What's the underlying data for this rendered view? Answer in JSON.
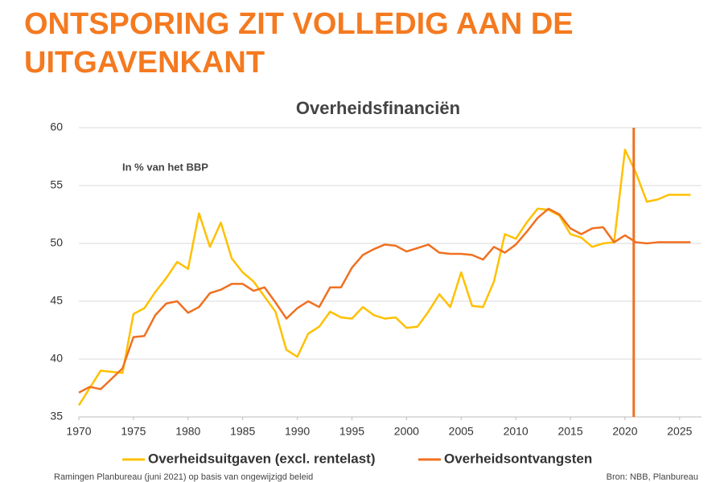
{
  "page_title": "ONTSPORING ZIT VOLLEDIG AAN DE UITGAVENKANT",
  "chart_data": {
    "type": "line",
    "title": "Overheidsfinanciën",
    "annotation": "In % van het BBP",
    "x": [
      1970,
      1971,
      1972,
      1973,
      1974,
      1975,
      1976,
      1977,
      1978,
      1979,
      1980,
      1981,
      1982,
      1983,
      1984,
      1985,
      1986,
      1987,
      1988,
      1989,
      1990,
      1991,
      1992,
      1993,
      1994,
      1995,
      1996,
      1997,
      1998,
      1999,
      2000,
      2001,
      2002,
      2003,
      2004,
      2005,
      2006,
      2007,
      2008,
      2009,
      2010,
      2011,
      2012,
      2013,
      2014,
      2015,
      2016,
      2017,
      2018,
      2019,
      2020,
      2021,
      2022,
      2023,
      2024,
      2025,
      2026
    ],
    "series": [
      {
        "name": "Overheidsuitgaven (excl. rentelast)",
        "color": "#ffc000",
        "values": [
          36.0,
          37.5,
          39.0,
          38.9,
          38.8,
          43.9,
          44.4,
          45.8,
          47.0,
          48.4,
          47.8,
          52.6,
          49.7,
          51.8,
          48.7,
          47.5,
          46.7,
          45.4,
          44.1,
          40.8,
          40.2,
          42.2,
          42.8,
          44.1,
          43.6,
          43.5,
          44.5,
          43.8,
          43.5,
          43.6,
          42.7,
          42.8,
          44.1,
          45.6,
          44.5,
          47.5,
          44.6,
          44.5,
          46.7,
          50.8,
          50.4,
          51.8,
          53.0,
          52.9,
          52.4,
          50.8,
          50.5,
          49.7,
          50.0,
          50.1,
          58.1,
          56.1,
          53.6,
          53.8,
          54.2,
          54.2,
          54.2
        ]
      },
      {
        "name": "Overheidsontvangsten",
        "color": "#f07020",
        "values": [
          37.1,
          37.6,
          37.4,
          38.3,
          39.2,
          41.9,
          42.0,
          43.8,
          44.8,
          45.0,
          44.0,
          44.5,
          45.7,
          46.0,
          46.5,
          46.5,
          45.9,
          46.2,
          44.9,
          43.5,
          44.4,
          45.0,
          44.5,
          46.2,
          46.2,
          47.9,
          49.0,
          49.5,
          49.9,
          49.8,
          49.3,
          49.6,
          49.9,
          49.2,
          49.1,
          49.1,
          49.0,
          48.6,
          49.7,
          49.2,
          49.9,
          51.0,
          52.2,
          53.0,
          52.5,
          51.3,
          50.8,
          51.3,
          51.4,
          50.1,
          50.7,
          50.1,
          50.0,
          50.1,
          50.1,
          50.1,
          50.1
        ]
      }
    ],
    "vline_x": 2020.8,
    "vline_color": "#f07020",
    "xlim": [
      1970,
      2027
    ],
    "xticks": [
      1970,
      1975,
      1980,
      1985,
      1990,
      1995,
      2000,
      2005,
      2010,
      2015,
      2020,
      2025
    ],
    "ylim": [
      35,
      60
    ],
    "yticks": [
      35,
      40,
      45,
      50,
      55,
      60
    ],
    "grid": true,
    "legend": "bottom",
    "footnote_left": "Ramingen Planbureau (juni 2021) op basis van ongewijzigd beleid",
    "footnote_right": "Bron: NBB, Planbureau"
  }
}
